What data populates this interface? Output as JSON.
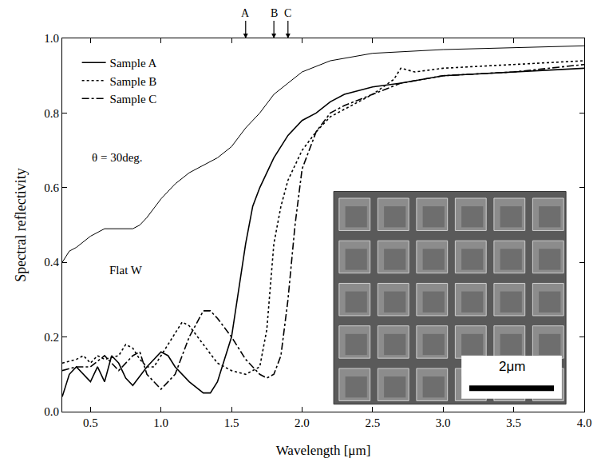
{
  "chart_data": {
    "type": "line",
    "x_label": "Wavelength [μm]",
    "y_label": "Spectral reflectivity",
    "xlim": [
      0.3,
      4.0
    ],
    "ylim": [
      0.0,
      1.0
    ],
    "xticks": [
      0.5,
      {
        "value": 1.0,
        "label": "1.0"
      },
      1.5,
      {
        "value": 2.0,
        "label": "2.0"
      },
      2.5,
      {
        "value": 3.0,
        "label": "3.0"
      },
      3.5,
      {
        "value": 4.0,
        "label": "4.0"
      }
    ],
    "yticks": [
      {
        "value": 0.0,
        "label": "0.0"
      },
      0.2,
      0.4,
      0.6,
      0.8,
      {
        "value": 1.0,
        "label": "1.0"
      }
    ],
    "grid": false,
    "legend": "upper left",
    "series": [
      {
        "name": "Sample A",
        "color": "#000000",
        "line_style": "solid",
        "x": [
          0.3,
          0.35,
          0.4,
          0.45,
          0.5,
          0.55,
          0.6,
          0.65,
          0.7,
          0.75,
          0.8,
          0.9,
          1.0,
          1.05,
          1.1,
          1.2,
          1.3,
          1.35,
          1.4,
          1.5,
          1.6,
          1.65,
          1.7,
          1.8,
          1.9,
          2.0,
          2.1,
          2.2,
          2.3,
          2.5,
          2.7,
          3.0,
          3.5,
          4.0
        ],
        "values": [
          0.04,
          0.1,
          0.12,
          0.1,
          0.08,
          0.12,
          0.08,
          0.15,
          0.13,
          0.09,
          0.07,
          0.12,
          0.16,
          0.15,
          0.12,
          0.08,
          0.05,
          0.05,
          0.08,
          0.2,
          0.45,
          0.55,
          0.6,
          0.68,
          0.74,
          0.78,
          0.8,
          0.83,
          0.85,
          0.87,
          0.88,
          0.9,
          0.91,
          0.92
        ]
      },
      {
        "name": "Sample B",
        "color": "#000000",
        "line_style": "dot",
        "x": [
          0.3,
          0.4,
          0.45,
          0.5,
          0.55,
          0.6,
          0.7,
          0.75,
          0.8,
          0.85,
          0.9,
          0.95,
          1.0,
          1.1,
          1.15,
          1.2,
          1.3,
          1.4,
          1.5,
          1.6,
          1.7,
          1.75,
          1.8,
          1.85,
          1.9,
          2.0,
          2.1,
          2.2,
          2.3,
          2.5,
          2.65,
          2.7,
          2.8,
          3.0,
          3.5,
          4.0
        ],
        "values": [
          0.13,
          0.14,
          0.15,
          0.13,
          0.15,
          0.14,
          0.15,
          0.18,
          0.17,
          0.14,
          0.12,
          0.12,
          0.15,
          0.21,
          0.24,
          0.23,
          0.18,
          0.13,
          0.11,
          0.1,
          0.12,
          0.22,
          0.45,
          0.55,
          0.62,
          0.7,
          0.75,
          0.79,
          0.81,
          0.85,
          0.89,
          0.92,
          0.91,
          0.92,
          0.93,
          0.94
        ]
      },
      {
        "name": "Sample C",
        "color": "#000000",
        "line_style": "dashdot",
        "x": [
          0.3,
          0.4,
          0.5,
          0.6,
          0.7,
          0.8,
          0.85,
          0.9,
          1.0,
          1.1,
          1.2,
          1.3,
          1.35,
          1.4,
          1.5,
          1.6,
          1.7,
          1.75,
          1.8,
          1.85,
          1.9,
          1.95,
          2.0,
          2.1,
          2.2,
          2.3,
          2.5,
          2.7,
          3.0,
          3.5,
          4.0
        ],
        "values": [
          0.11,
          0.12,
          0.12,
          0.15,
          0.11,
          0.15,
          0.16,
          0.1,
          0.06,
          0.1,
          0.2,
          0.27,
          0.27,
          0.25,
          0.2,
          0.14,
          0.1,
          0.09,
          0.1,
          0.15,
          0.3,
          0.5,
          0.65,
          0.75,
          0.8,
          0.82,
          0.85,
          0.88,
          0.9,
          0.91,
          0.93
        ]
      },
      {
        "name": "Flat W",
        "color": "#000000",
        "line_style": "solid",
        "x": [
          0.3,
          0.35,
          0.4,
          0.5,
          0.6,
          0.7,
          0.8,
          0.85,
          0.9,
          1.0,
          1.1,
          1.2,
          1.3,
          1.4,
          1.5,
          1.6,
          1.7,
          1.8,
          1.9,
          2.0,
          2.2,
          2.5,
          3.0,
          3.5,
          4.0
        ],
        "values": [
          0.4,
          0.43,
          0.44,
          0.47,
          0.49,
          0.49,
          0.49,
          0.5,
          0.52,
          0.57,
          0.61,
          0.64,
          0.66,
          0.68,
          0.71,
          0.76,
          0.8,
          0.85,
          0.88,
          0.91,
          0.94,
          0.96,
          0.97,
          0.975,
          0.98
        ]
      }
    ],
    "annotations": [
      {
        "text": "Flat W",
        "x": 0.62,
        "y": 0.38
      },
      {
        "text": "θ = 30deg.",
        "x": 0.5,
        "y": 0.68
      }
    ],
    "wavelength_marks": [
      {
        "text": "A",
        "x": 1.6
      },
      {
        "text": "B",
        "x": 1.8
      },
      {
        "text": "C",
        "x": 1.9
      }
    ],
    "inset_scale_label": "2μm"
  }
}
